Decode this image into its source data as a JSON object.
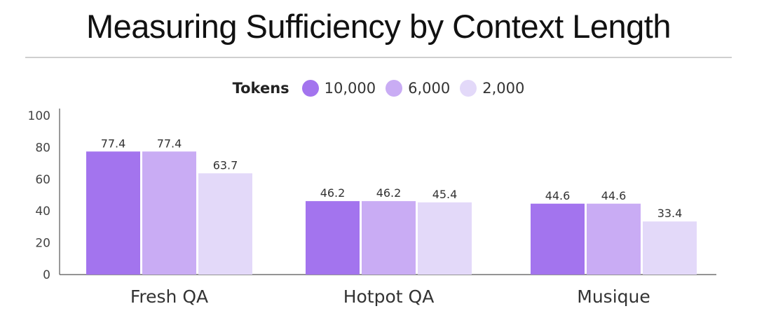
{
  "title": "Measuring Sufficiency by Context Length",
  "legend": {
    "title": "Tokens",
    "items": [
      {
        "label": "10,000",
        "color": "#a374ee"
      },
      {
        "label": "6,000",
        "color": "#c9acf4"
      },
      {
        "label": "2,000",
        "color": "#e3d9f9"
      }
    ]
  },
  "chart_data": {
    "type": "bar",
    "title": "Measuring Sufficiency by Context Length",
    "categories": [
      "Fresh QA",
      "Hotpot QA",
      "Musique"
    ],
    "series": [
      {
        "name": "10,000",
        "values": [
          77.4,
          46.2,
          44.6
        ],
        "color": "#a374ee"
      },
      {
        "name": "6,000",
        "values": [
          77.4,
          46.2,
          44.6
        ],
        "color": "#c9acf4"
      },
      {
        "name": "2,000",
        "values": [
          63.7,
          45.4,
          33.4
        ],
        "color": "#e3d9f9"
      }
    ],
    "labels": [
      [
        "77.4",
        "46.2",
        "44.6"
      ],
      [
        "77.4",
        "46.2",
        "44.6"
      ],
      [
        "63.7",
        "45.4",
        "33.4"
      ]
    ],
    "ylim": [
      0,
      100
    ],
    "yticks": [
      0,
      20,
      40,
      60,
      80,
      100
    ],
    "ytick_labels": [
      "0",
      "20",
      "40",
      "60",
      "80",
      "100"
    ],
    "legend_title": "Tokens",
    "legend_position": "top-center",
    "grid": false
  }
}
